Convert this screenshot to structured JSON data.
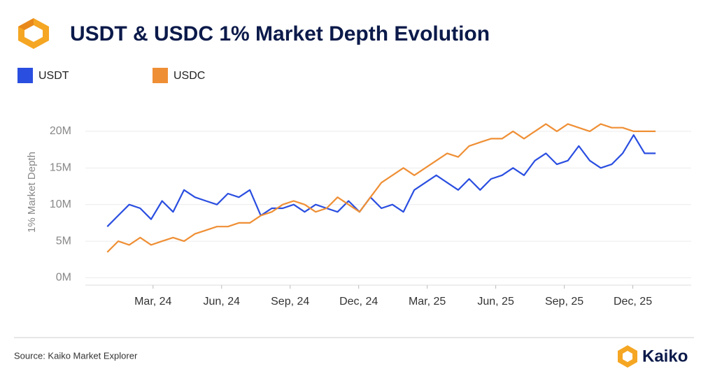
{
  "header": {
    "title": "USDT & USDC 1% Market Depth Evolution"
  },
  "chart_data": {
    "type": "line",
    "y_label": "1% Market Depth",
    "x": [
      2024.0,
      2024.04,
      2024.08,
      2024.12,
      2024.16,
      2024.2,
      2024.24,
      2024.28,
      2024.32,
      2024.36,
      2024.4,
      2024.44,
      2024.48,
      2024.52,
      2024.56,
      2024.6,
      2024.64,
      2024.68,
      2024.72,
      2024.76,
      2024.8,
      2024.84,
      2024.88,
      2024.92,
      2024.96,
      2025.0,
      2025.04,
      2025.08,
      2025.12,
      2025.16,
      2025.2,
      2025.24,
      2025.28,
      2025.32,
      2025.36,
      2025.4,
      2025.44,
      2025.48,
      2025.52,
      2025.56,
      2025.6,
      2025.64,
      2025.68,
      2025.72,
      2025.76,
      2025.8,
      2025.84,
      2025.88,
      2025.92,
      2025.96,
      2026.0
    ],
    "series": [
      {
        "name": "USDT",
        "color": "#2a4ee0",
        "values": [
          7,
          8.5,
          10,
          9.5,
          8,
          10.5,
          9,
          12,
          11,
          10.5,
          10,
          11.5,
          11,
          12,
          8.5,
          9.5,
          9.5,
          10,
          9,
          10,
          9.5,
          9,
          10.5,
          9,
          11,
          9.5,
          10,
          9,
          12,
          13,
          14,
          13,
          12,
          13.5,
          12,
          13.5,
          14,
          15,
          14,
          16,
          17,
          15.5,
          16,
          18,
          16,
          15,
          15.5,
          17,
          19.5,
          17,
          17
        ]
      },
      {
        "name": "USDC",
        "color": "#ef8f35",
        "values": [
          3.5,
          5,
          4.5,
          5.5,
          4.5,
          5,
          5.5,
          5,
          6,
          6.5,
          7,
          7,
          7.5,
          7.5,
          8.5,
          9,
          10,
          10.5,
          10,
          9,
          9.5,
          11,
          10,
          9,
          11,
          13,
          14,
          15,
          14,
          15,
          16,
          17,
          16.5,
          18,
          18.5,
          19,
          19,
          20,
          19,
          20,
          21,
          20,
          21,
          20.5,
          20,
          21,
          20.5,
          20.5,
          20,
          20,
          20
        ]
      }
    ],
    "xlim": [
      2023.92,
      2026.13
    ],
    "xticks": [
      {
        "value": 2024.167,
        "label": "Mar, 24"
      },
      {
        "value": 2024.417,
        "label": "Jun, 24"
      },
      {
        "value": 2024.667,
        "label": "Sep, 24"
      },
      {
        "value": 2024.917,
        "label": "Dec, 24"
      },
      {
        "value": 2025.167,
        "label": "Mar, 25"
      },
      {
        "value": 2025.417,
        "label": "Jun, 25"
      },
      {
        "value": 2025.667,
        "label": "Sep, 25"
      },
      {
        "value": 2025.917,
        "label": "Dec, 25"
      }
    ],
    "ylim": [
      -1,
      24
    ],
    "yticks": [
      {
        "value": 0,
        "label": "0M"
      },
      {
        "value": 5,
        "label": "5M"
      },
      {
        "value": 10,
        "label": "10M"
      },
      {
        "value": 15,
        "label": "15M"
      },
      {
        "value": 20,
        "label": "20M"
      }
    ],
    "grid": true
  },
  "footer": {
    "source": "Source: Kaiko Market Explorer",
    "brand": "Kaiko"
  }
}
